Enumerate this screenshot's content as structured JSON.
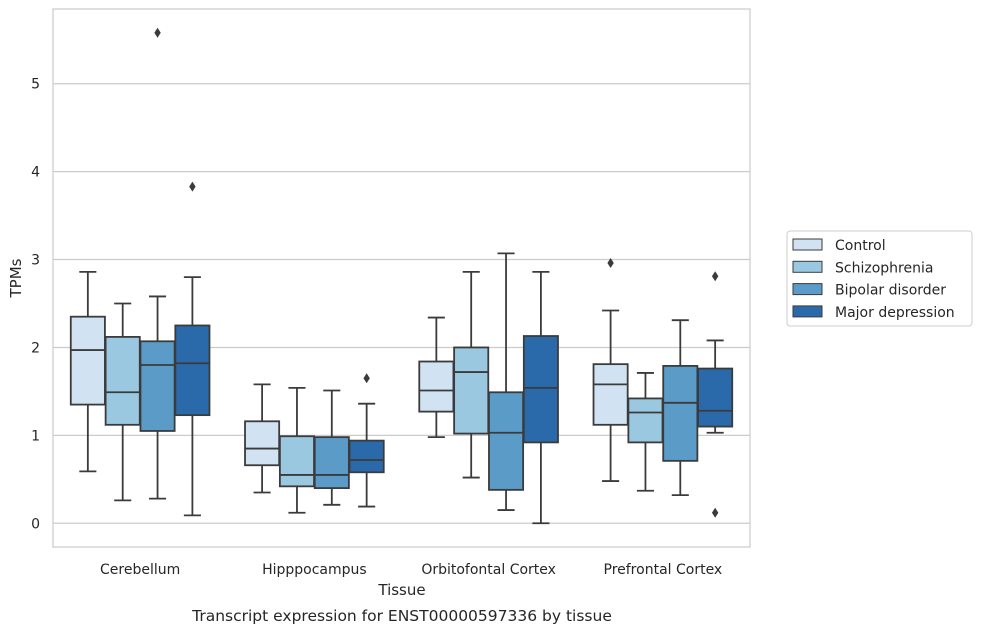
{
  "chart_data": {
    "type": "box",
    "title": "",
    "caption": "Transcript expression for ENST00000597336 by tissue",
    "xlabel": "Tissue",
    "ylabel": "TPMs",
    "ylim": [
      -0.27,
      5.85
    ],
    "yticks": [
      0,
      1,
      2,
      3,
      4,
      5
    ],
    "grid": true,
    "legend_position": "right",
    "categories": [
      "Cerebellum",
      "Hipppocampus",
      "Orbitofontal Cortex",
      "Prefrontal Cortex"
    ],
    "series": [
      {
        "name": "Control",
        "color": "#d1e2f2",
        "boxes": [
          {
            "whislo": 0.59,
            "q1": 1.35,
            "med": 1.97,
            "q3": 2.35,
            "whishi": 2.86,
            "fliers": []
          },
          {
            "whislo": 0.35,
            "q1": 0.66,
            "med": 0.85,
            "q3": 1.16,
            "whishi": 1.58,
            "fliers": []
          },
          {
            "whislo": 0.98,
            "q1": 1.27,
            "med": 1.51,
            "q3": 1.84,
            "whishi": 2.34,
            "fliers": []
          },
          {
            "whislo": 0.48,
            "q1": 1.12,
            "med": 1.58,
            "q3": 1.81,
            "whishi": 2.42,
            "fliers": [
              2.96
            ]
          }
        ]
      },
      {
        "name": "Schizophrenia",
        "color": "#9ac8e0",
        "boxes": [
          {
            "whislo": 0.26,
            "q1": 1.12,
            "med": 1.49,
            "q3": 2.12,
            "whishi": 2.5,
            "fliers": []
          },
          {
            "whislo": 0.12,
            "q1": 0.42,
            "med": 0.55,
            "q3": 0.99,
            "whishi": 1.54,
            "fliers": []
          },
          {
            "whislo": 0.52,
            "q1": 1.02,
            "med": 1.72,
            "q3": 2.0,
            "whishi": 2.86,
            "fliers": []
          },
          {
            "whislo": 0.37,
            "q1": 0.92,
            "med": 1.26,
            "q3": 1.42,
            "whishi": 1.71,
            "fliers": []
          }
        ]
      },
      {
        "name": "Bipolar disorder",
        "color": "#5a9bc8",
        "boxes": [
          {
            "whislo": 0.28,
            "q1": 1.05,
            "med": 1.8,
            "q3": 2.07,
            "whishi": 2.58,
            "fliers": [
              5.58
            ]
          },
          {
            "whislo": 0.21,
            "q1": 0.4,
            "med": 0.55,
            "q3": 0.98,
            "whishi": 1.51,
            "fliers": []
          },
          {
            "whislo": 0.15,
            "q1": 0.38,
            "med": 1.03,
            "q3": 1.49,
            "whishi": 3.07,
            "fliers": []
          },
          {
            "whislo": 0.32,
            "q1": 0.71,
            "med": 1.37,
            "q3": 1.79,
            "whishi": 2.31,
            "fliers": []
          }
        ]
      },
      {
        "name": "Major depression",
        "color": "#2a6aab",
        "boxes": [
          {
            "whislo": 0.09,
            "q1": 1.23,
            "med": 1.82,
            "q3": 2.25,
            "whishi": 2.8,
            "fliers": [
              3.83
            ]
          },
          {
            "whislo": 0.19,
            "q1": 0.58,
            "med": 0.72,
            "q3": 0.94,
            "whishi": 1.36,
            "fliers": [
              1.65
            ]
          },
          {
            "whislo": 0.0,
            "q1": 0.92,
            "med": 1.54,
            "q3": 2.13,
            "whishi": 2.86,
            "fliers": []
          },
          {
            "whislo": 1.03,
            "q1": 1.1,
            "med": 1.28,
            "q3": 1.76,
            "whishi": 2.08,
            "fliers": [
              2.81,
              0.12
            ]
          }
        ]
      }
    ]
  }
}
